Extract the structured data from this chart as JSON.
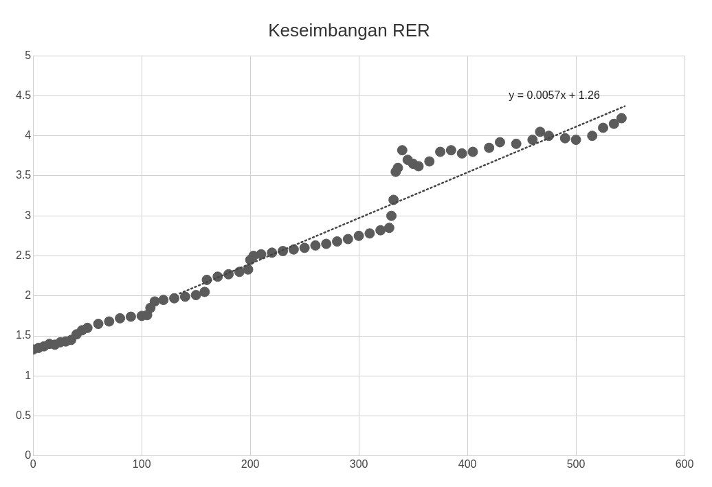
{
  "chart_data": {
    "type": "scatter",
    "title": "Keseimbangan RER",
    "xlim": [
      0,
      600
    ],
    "xticks": [
      0,
      100,
      200,
      300,
      400,
      500,
      600
    ],
    "ylim": [
      0,
      5
    ],
    "yticks": [
      0,
      0.5,
      1,
      1.5,
      2,
      2.5,
      3,
      3.5,
      4,
      4.5,
      5
    ],
    "grid": true,
    "legend": false,
    "marker": "circle",
    "series": [
      {
        "color": "#5b5b5b",
        "x": [
          0,
          5,
          10,
          15,
          20,
          25,
          30,
          35,
          40,
          45,
          50,
          60,
          70,
          80,
          90,
          100,
          105,
          108,
          112,
          120,
          130,
          140,
          150,
          158,
          160,
          170,
          180,
          190,
          198,
          200,
          203,
          210,
          220,
          230,
          240,
          250,
          260,
          270,
          280,
          290,
          300,
          310,
          320,
          328,
          330,
          332,
          334,
          336,
          340,
          345,
          350,
          355,
          365,
          375,
          385,
          395,
          405,
          420,
          430,
          445,
          460,
          467,
          475,
          490,
          500,
          515,
          525,
          535,
          542
        ],
        "values": [
          1.33,
          1.35,
          1.37,
          1.4,
          1.39,
          1.42,
          1.43,
          1.45,
          1.52,
          1.57,
          1.6,
          1.65,
          1.68,
          1.72,
          1.74,
          1.75,
          1.76,
          1.85,
          1.93,
          1.95,
          1.97,
          1.99,
          2.01,
          2.05,
          2.2,
          2.24,
          2.27,
          2.3,
          2.33,
          2.45,
          2.5,
          2.52,
          2.54,
          2.56,
          2.58,
          2.6,
          2.63,
          2.65,
          2.68,
          2.71,
          2.75,
          2.78,
          2.82,
          2.85,
          3.0,
          3.2,
          3.55,
          3.6,
          3.82,
          3.7,
          3.65,
          3.62,
          3.68,
          3.8,
          3.82,
          3.78,
          3.8,
          3.85,
          3.92,
          3.9,
          3.95,
          4.05,
          4.0,
          3.97,
          3.95,
          4.0,
          4.1,
          4.15,
          4.22
        ]
      },
      {
        "type": "line",
        "line_style": "dotted",
        "marker": "none",
        "color": "#444444",
        "x": [
          135,
          545
        ],
        "values": [
          2.03,
          4.37
        ]
      }
    ],
    "annotations": [
      "y = 0.0057x + 1.26"
    ]
  }
}
